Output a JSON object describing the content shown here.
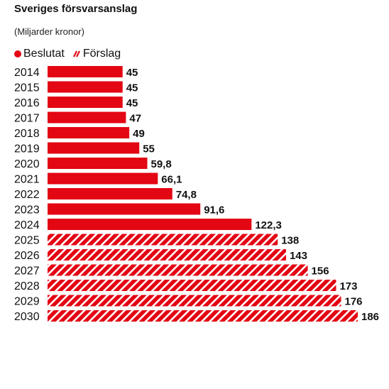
{
  "chart_data": {
    "type": "bar",
    "orientation": "horizontal",
    "title": "Sveriges försvarsanslag",
    "subtitle": "(Miljarder kronor)",
    "legend": [
      {
        "label": "Beslutat",
        "style": "solid"
      },
      {
        "label": "Förslag",
        "style": "hatched"
      }
    ],
    "colors": {
      "bar": "#e30613",
      "hatch_stripe": "#ffffff",
      "text": "#111111"
    },
    "categories": [
      "2014",
      "2015",
      "2016",
      "2017",
      "2018",
      "2019",
      "2020",
      "2021",
      "2022",
      "2023",
      "2024",
      "2025",
      "2026",
      "2027",
      "2028",
      "2029",
      "2030"
    ],
    "values": [
      45,
      45,
      45,
      47,
      49,
      55,
      59.8,
      66.1,
      74.8,
      91.6,
      122.3,
      138,
      143,
      156,
      173,
      176,
      186
    ],
    "value_labels": [
      "45",
      "45",
      "45",
      "47",
      "49",
      "55",
      "59,8",
      "66,1",
      "74,8",
      "91,6",
      "122,3",
      "138",
      "143",
      "156",
      "173",
      "176",
      "186"
    ],
    "status": [
      "Beslutat",
      "Beslutat",
      "Beslutat",
      "Beslutat",
      "Beslutat",
      "Beslutat",
      "Beslutat",
      "Beslutat",
      "Beslutat",
      "Beslutat",
      "Beslutat",
      "Förslag",
      "Förslag",
      "Förslag",
      "Förslag",
      "Förslag",
      "Förslag"
    ],
    "xlim": [
      0,
      186
    ],
    "grid": false
  }
}
